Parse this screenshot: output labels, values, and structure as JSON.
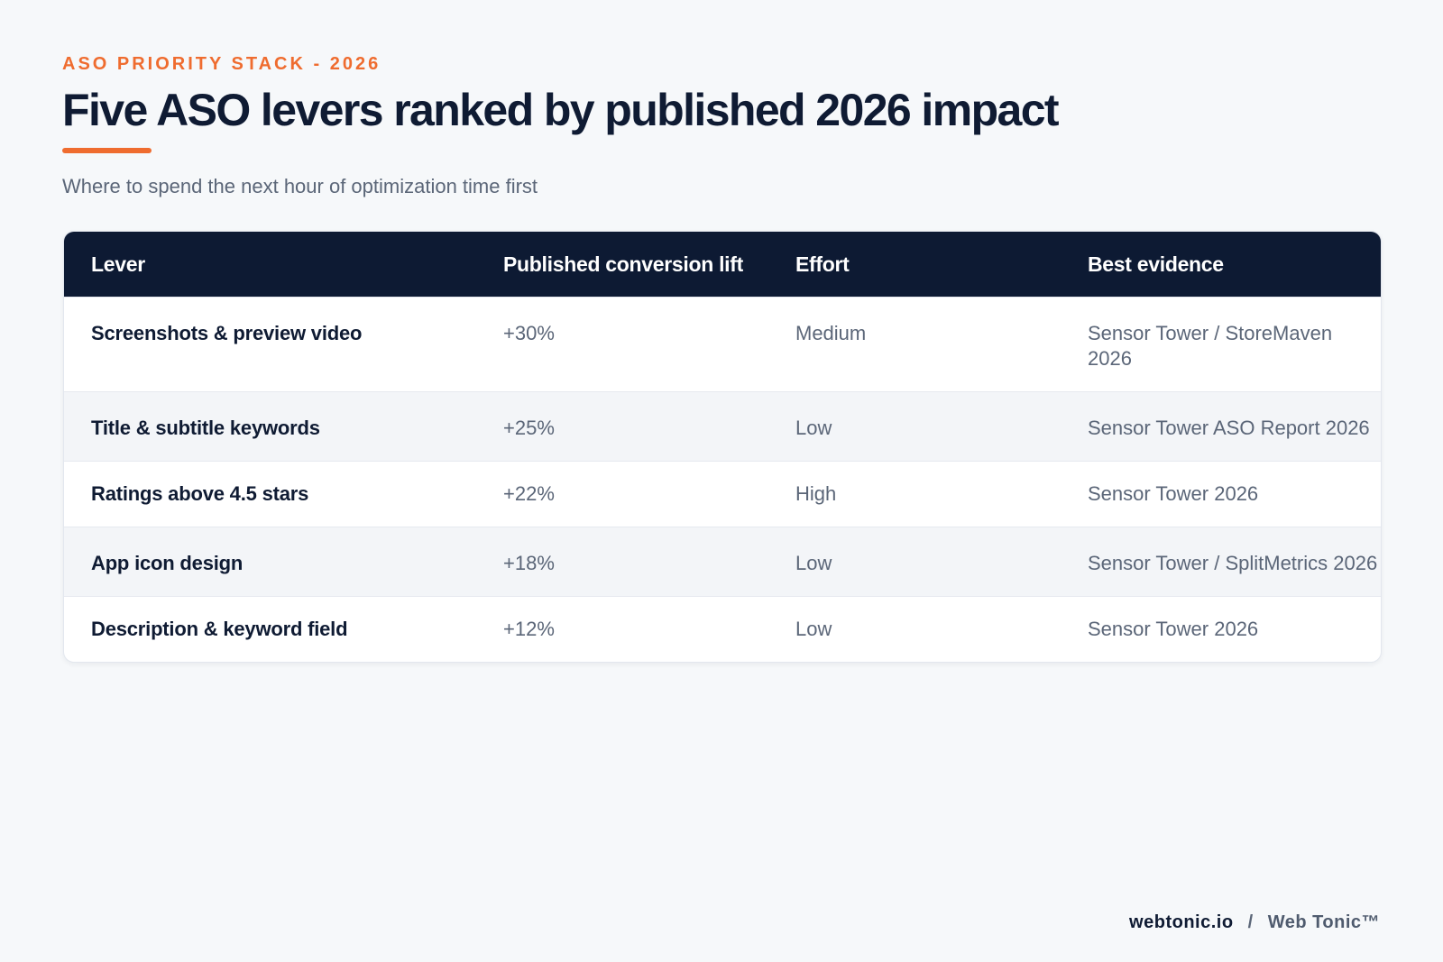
{
  "header": {
    "eyebrow": "ASO PRIORITY STACK - 2026",
    "title": "Five ASO levers ranked by published 2026 impact",
    "subtitle": "Where to spend the next hour of optimization time first"
  },
  "table": {
    "columns": [
      "Lever",
      "Published conversion lift",
      "Effort",
      "Best evidence"
    ],
    "rows": [
      {
        "lever": "Screenshots & preview video",
        "lift": "+30%",
        "effort": "Medium",
        "evidence": "Sensor Tower / StoreMaven 2026"
      },
      {
        "lever": "Title & subtitle keywords",
        "lift": "+25%",
        "effort": "Low",
        "evidence": "Sensor Tower ASO Report 2026"
      },
      {
        "lever": "Ratings above 4.5 stars",
        "lift": "+22%",
        "effort": "High",
        "evidence": "Sensor Tower 2026"
      },
      {
        "lever": "App icon design",
        "lift": "+18%",
        "effort": "Low",
        "evidence": "Sensor Tower / SplitMetrics 2026"
      },
      {
        "lever": "Description & keyword field",
        "lift": "+12%",
        "effort": "Low",
        "evidence": "Sensor Tower 2026"
      }
    ]
  },
  "footer": {
    "domain": "webtonic.io",
    "separator": "/",
    "brand": "Web Tonic™"
  },
  "colors": {
    "accent": "#ef6c2f",
    "navy": "#0d1a33",
    "background": "#f6f8fa"
  }
}
